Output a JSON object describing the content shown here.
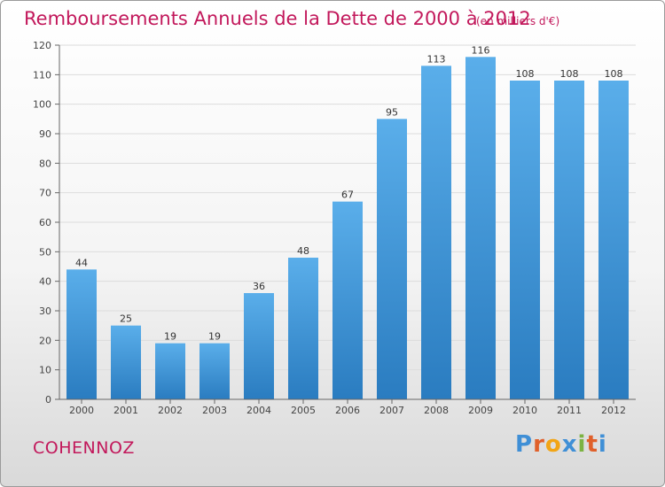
{
  "title": "Remboursements Annuels de la Dette de 2000 à 2012",
  "subtitle": "(en milliers d'€)",
  "commune": "COHENNOZ",
  "logo": {
    "letters": [
      {
        "ch": "P",
        "color": "#3f8fd6"
      },
      {
        "ch": "r",
        "color": "#e0602a"
      },
      {
        "ch": "o",
        "color": "#f2a516"
      },
      {
        "ch": "x",
        "color": "#3f8fd6"
      },
      {
        "ch": "i",
        "color": "#7cb342"
      },
      {
        "ch": "t",
        "color": "#e0602a"
      },
      {
        "ch": "i",
        "color": "#3f8fd6"
      }
    ]
  },
  "colors": {
    "bar_top": "#5aaeea",
    "bar_bottom": "#2a7cc0",
    "title": "#c2185b"
  },
  "chart_data": {
    "type": "bar",
    "categories": [
      "2000",
      "2001",
      "2002",
      "2003",
      "2004",
      "2005",
      "2006",
      "2007",
      "2008",
      "2009",
      "2010",
      "2011",
      "2012"
    ],
    "values": [
      44,
      25,
      19,
      19,
      36,
      48,
      67,
      95,
      113,
      116,
      108,
      108,
      108
    ],
    "ylim": [
      0,
      120
    ],
    "yticks": [
      0,
      10,
      20,
      30,
      40,
      50,
      60,
      70,
      80,
      90,
      100,
      110,
      120
    ],
    "grid": true
  }
}
